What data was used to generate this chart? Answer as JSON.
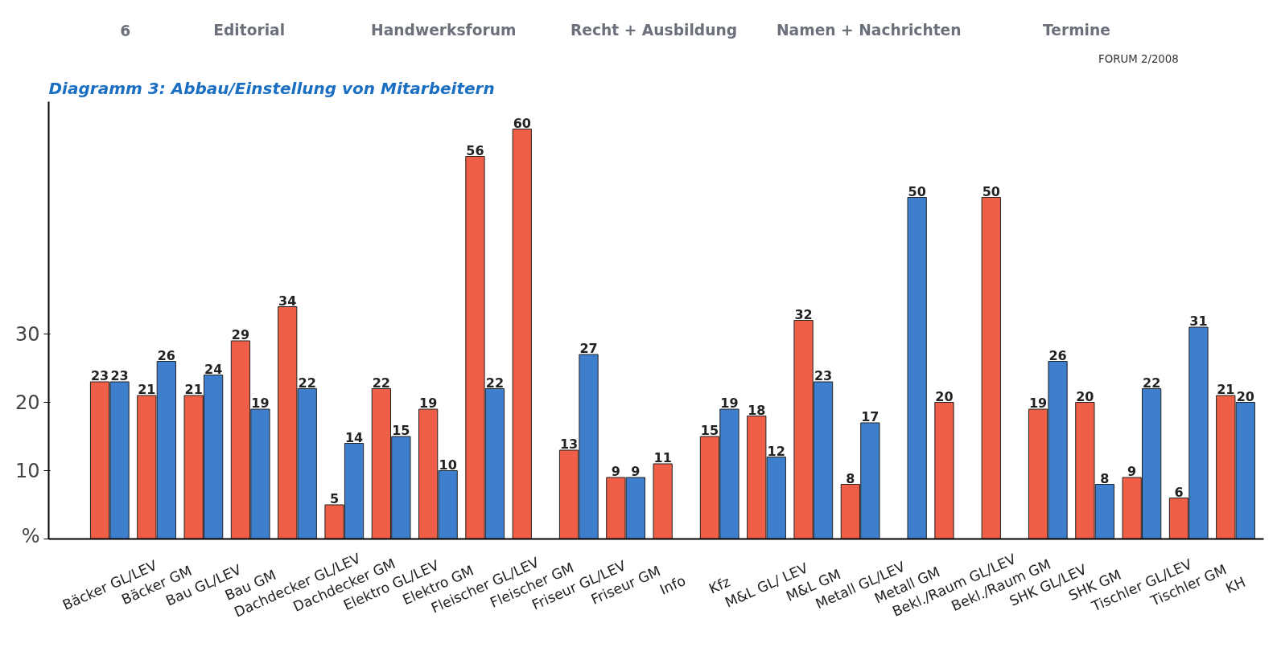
{
  "chart_data": {
    "type": "bar",
    "title": "Diagramm 3: Abbau/Einstellung von Mitarbeitern",
    "annotations": [
      "6",
      "Editorial",
      "Handwerksforum",
      "Recht + Ausbildung",
      "Namen + Nachrichten",
      "Termine",
      "FORUM 2/2008"
    ],
    "categories": [
      "Bäcker GL/LEV",
      "Bäcker GM",
      "Bau GL/LEV",
      "Bau GM",
      "Dachdecker GL/LEV",
      "Dachdecker GM",
      "Elektro GL/LEV",
      "Elektro GM",
      "Fleischer GL/LEV",
      "Fleischer GM",
      "Friseur GL/LEV",
      "Friseur GM",
      "Info",
      "Kfz",
      "M&L GL/ LEV",
      "M&L GM",
      "Metall GL/LEV",
      "Metall GM",
      "Bekl./Raum GL/LEV",
      "Bekl./Raum GM",
      "SHK GL/LEV",
      "SHK GM",
      "Tischler GL/LEV",
      "Tischler GM",
      "KH"
    ],
    "series": [
      {
        "color": "#ef5f48",
        "values": [
          23,
          21,
          21,
          29,
          34,
          5,
          22,
          19,
          56,
          60,
          13,
          9,
          11,
          15,
          18,
          32,
          8,
          null,
          20,
          50,
          19,
          20,
          9,
          6,
          21
        ]
      },
      {
        "color": "#3d7fcc",
        "values": [
          23,
          26,
          24,
          19,
          22,
          14,
          15,
          10,
          22,
          null,
          27,
          9,
          null,
          19,
          12,
          23,
          17,
          50,
          null,
          null,
          26,
          8,
          22,
          31,
          20
        ]
      }
    ],
    "ylim": [
      0,
      64
    ],
    "yticks": [
      {
        "value": 0,
        "label": "%"
      },
      10,
      20,
      30
    ],
    "grid": false,
    "data_labels": true
  }
}
